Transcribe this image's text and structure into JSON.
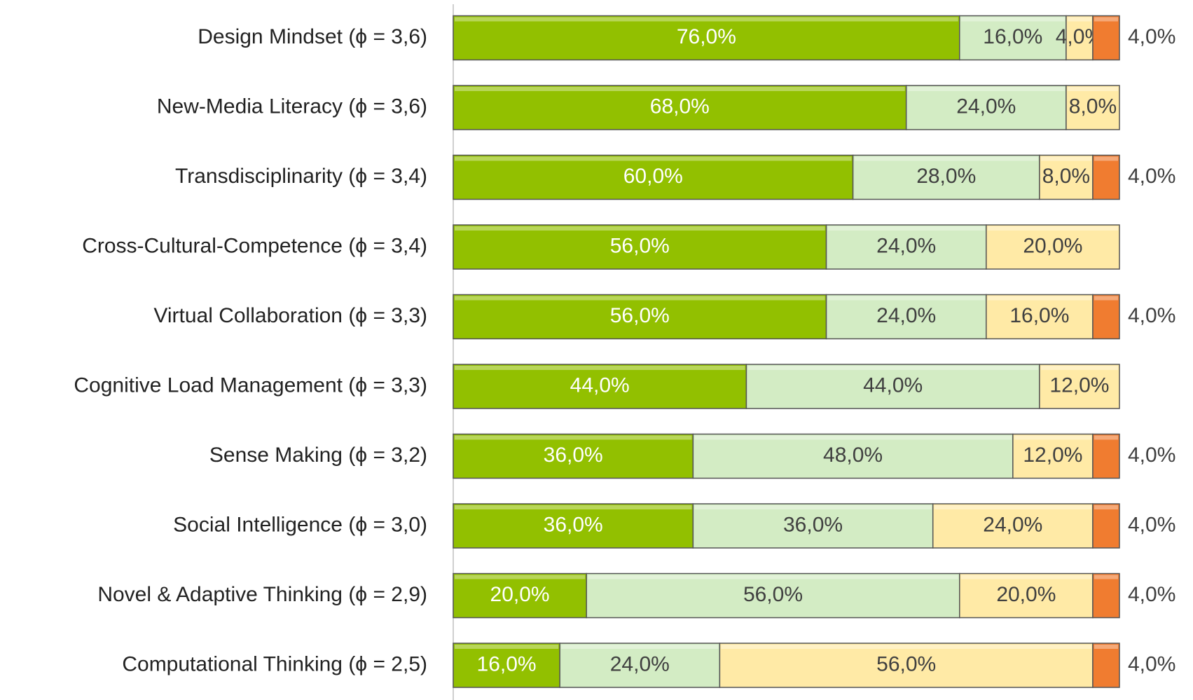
{
  "chart_data": {
    "type": "stacked-bar-horizontal",
    "categories": [
      "Design Mindset (ϕ = 3,6)",
      "New-Media Literacy (ϕ = 3,6)",
      "Transdisciplinarity (ϕ = 3,4)",
      "Cross-Cultural-Competence (ϕ = 3,4)",
      "Virtual Collaboration (ϕ = 3,3)",
      "Cognitive Load Management (ϕ = 3,3)",
      "Sense Making (ϕ = 3,2)",
      "Social Intelligence (ϕ = 3,0)",
      "Novel & Adaptive Thinking (ϕ = 2,9)",
      "Computational Thinking (ϕ = 2,5)"
    ],
    "series": [
      {
        "color": "#92c000",
        "values": [
          76,
          68,
          60,
          56,
          56,
          44,
          36,
          36,
          20,
          16
        ],
        "value_labels": [
          "76,0%",
          "68,0%",
          "60,0%",
          "56,0%",
          "56,0%",
          "44,0%",
          "36,0%",
          "36,0%",
          "20,0%",
          "16,0%"
        ]
      },
      {
        "color": "#d3ecc4",
        "values": [
          16,
          24,
          28,
          24,
          24,
          44,
          48,
          36,
          56,
          24
        ],
        "value_labels": [
          "16,0%",
          "24,0%",
          "28,0%",
          "24,0%",
          "24,0%",
          "44,0%",
          "48,0%",
          "36,0%",
          "56,0%",
          "24,0%"
        ]
      },
      {
        "color": "#ffeaa6",
        "values": [
          4,
          8,
          8,
          20,
          16,
          12,
          12,
          24,
          20,
          56
        ],
        "value_labels": [
          "4,0%",
          "8,0%",
          "8,0%",
          "20,0%",
          "16,0%",
          "12,0%",
          "12,0%",
          "24,0%",
          "20,0%",
          "56,0%"
        ]
      },
      {
        "color": "#f07c30",
        "values": [
          4,
          null,
          4,
          null,
          4,
          null,
          4,
          4,
          4,
          4
        ],
        "value_labels": [
          "4,0%",
          null,
          "4,0%",
          null,
          "4,0%",
          null,
          "4,0%",
          "4,0%",
          "4,0%",
          "4,0%"
        ]
      }
    ],
    "xlim": [
      0,
      100
    ]
  }
}
